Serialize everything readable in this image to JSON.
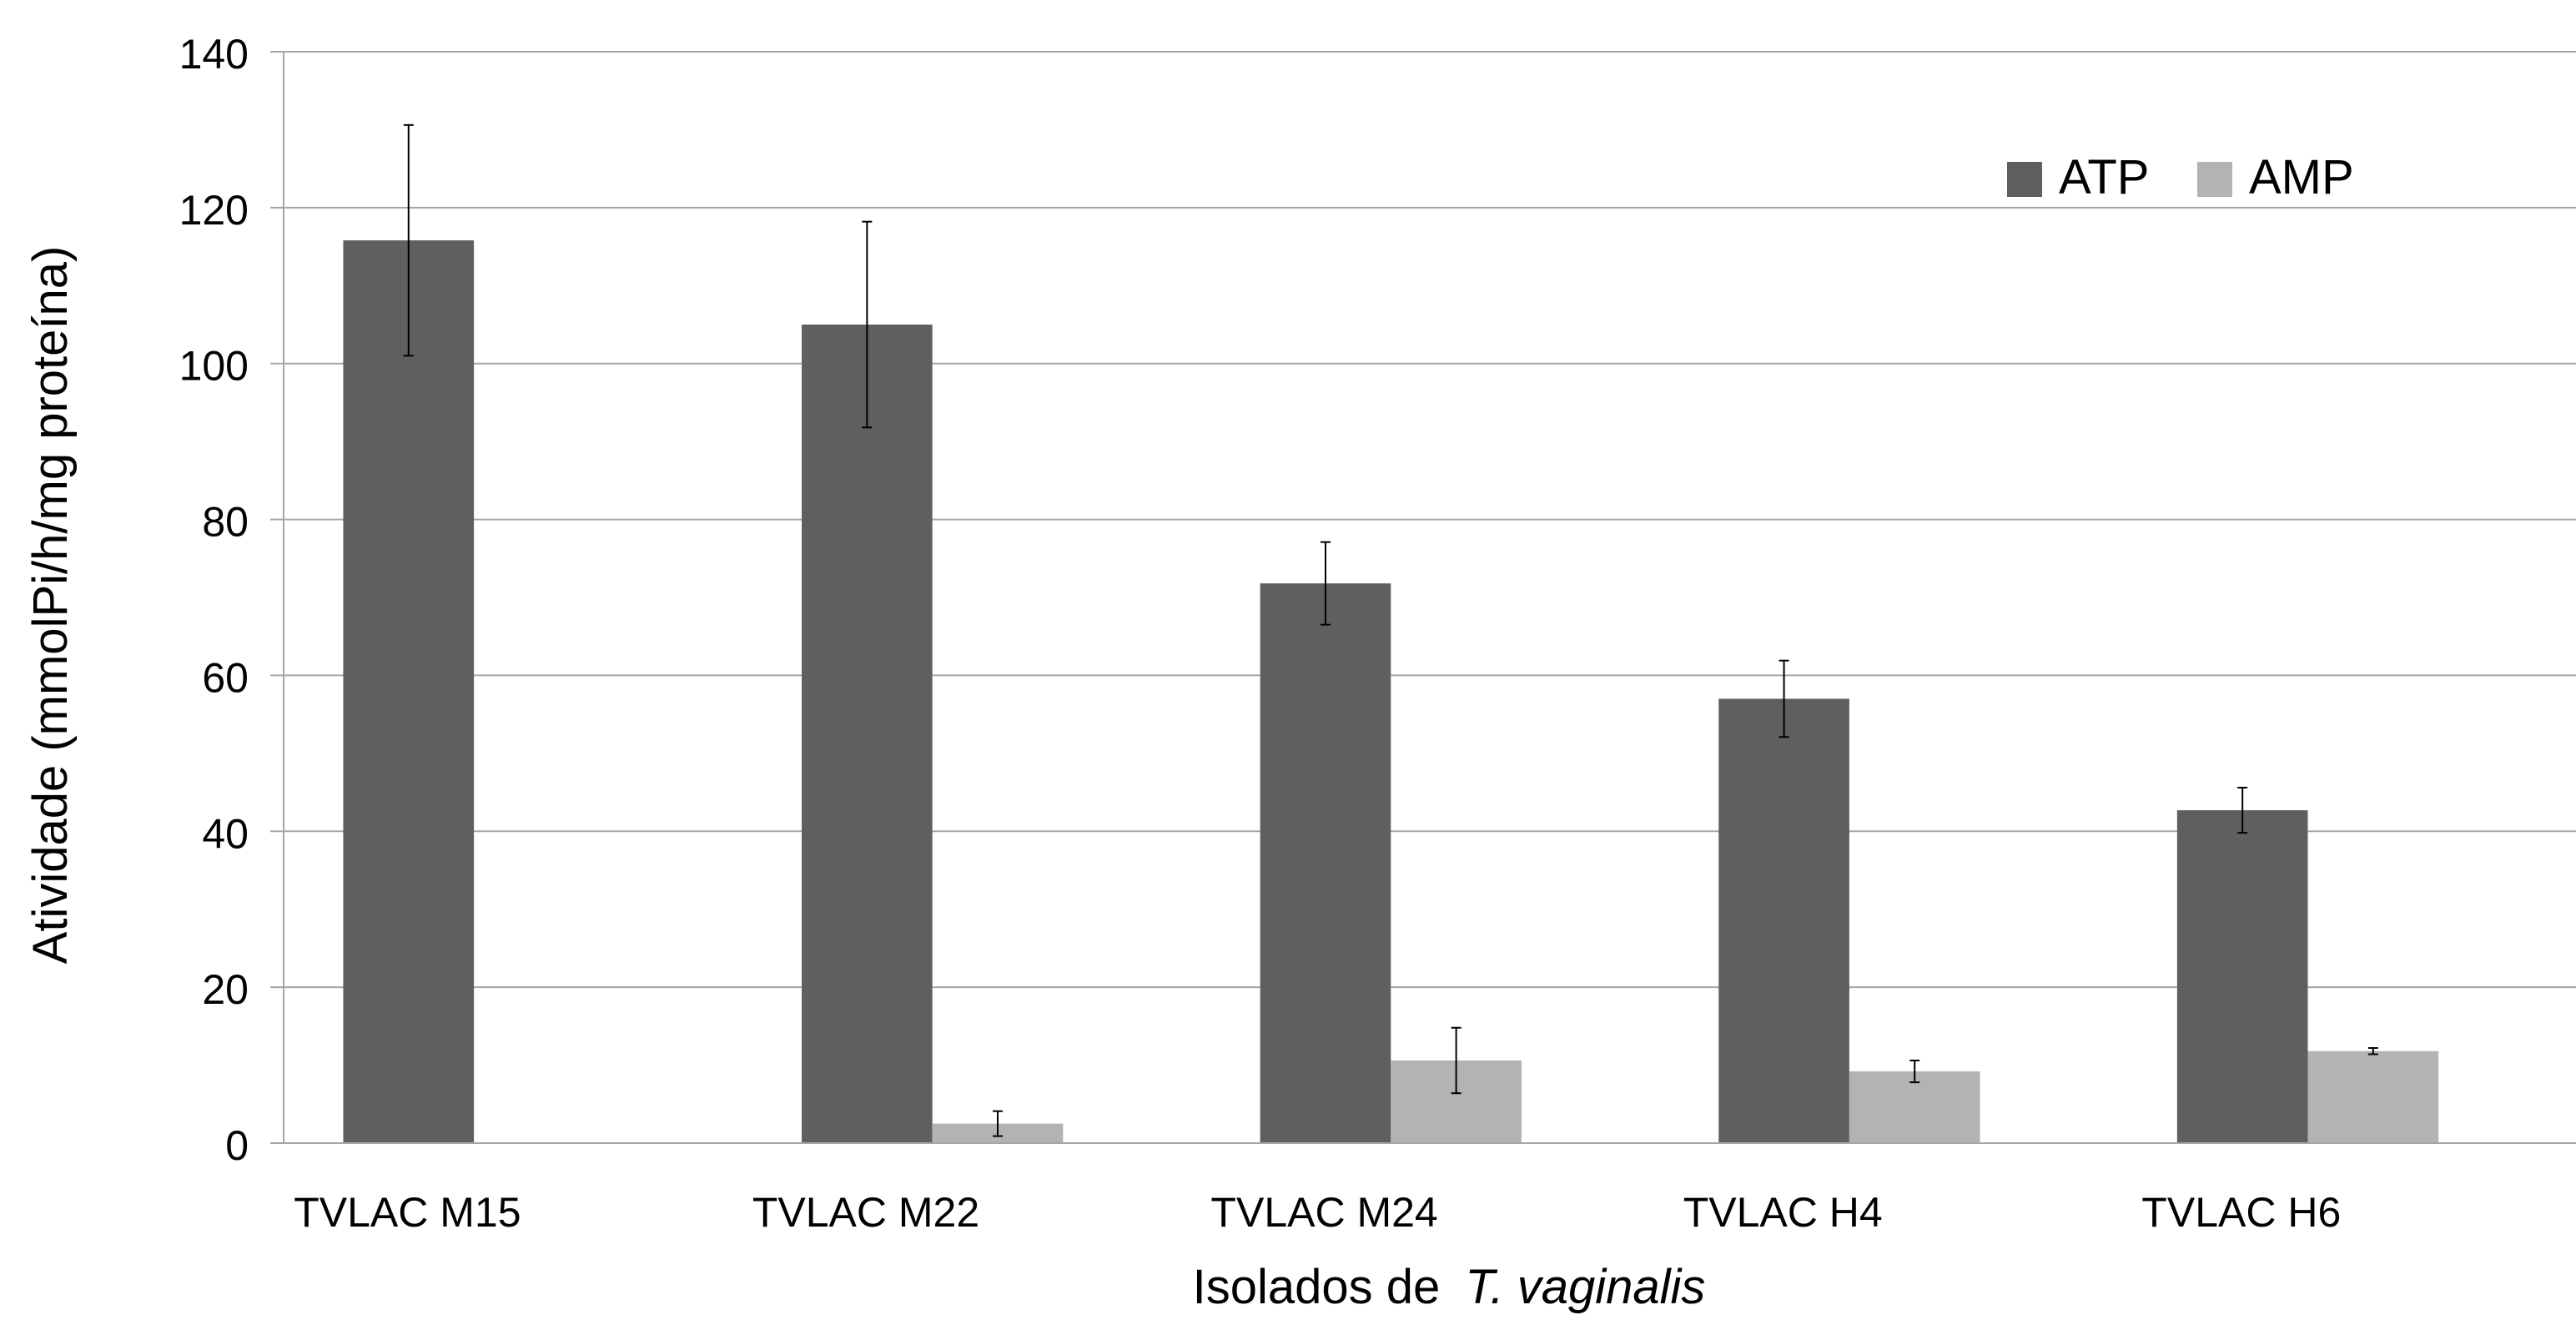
{
  "chart_data": {
    "type": "bar",
    "title": "",
    "xlabel": "Isolados de",
    "xlabel_italic": "T. vaginalis",
    "ylabel": "Atividade (mmolPi/h/mg proteína)",
    "ylim": [
      0,
      140
    ],
    "yticks": [
      0,
      20,
      40,
      60,
      80,
      100,
      120,
      140
    ],
    "grid": true,
    "legend_position": "top-right",
    "categories": [
      "TVLAC M15",
      "TVLAC M22",
      "TVLAC M24",
      "TVLAC H4",
      "TVLAC H6"
    ],
    "series": [
      {
        "name": "ATP",
        "color": "#5f5f5f",
        "values": [
          115.8,
          105.0,
          71.8,
          57.0,
          42.7
        ],
        "errors": [
          14.8,
          13.2,
          5.3,
          4.9,
          2.9
        ]
      },
      {
        "name": "AMP",
        "color": "#b3b3b3",
        "values": [
          0.0,
          2.5,
          10.6,
          9.2,
          11.8
        ],
        "errors": [
          0.0,
          1.6,
          4.2,
          1.4,
          0.4
        ]
      }
    ]
  }
}
